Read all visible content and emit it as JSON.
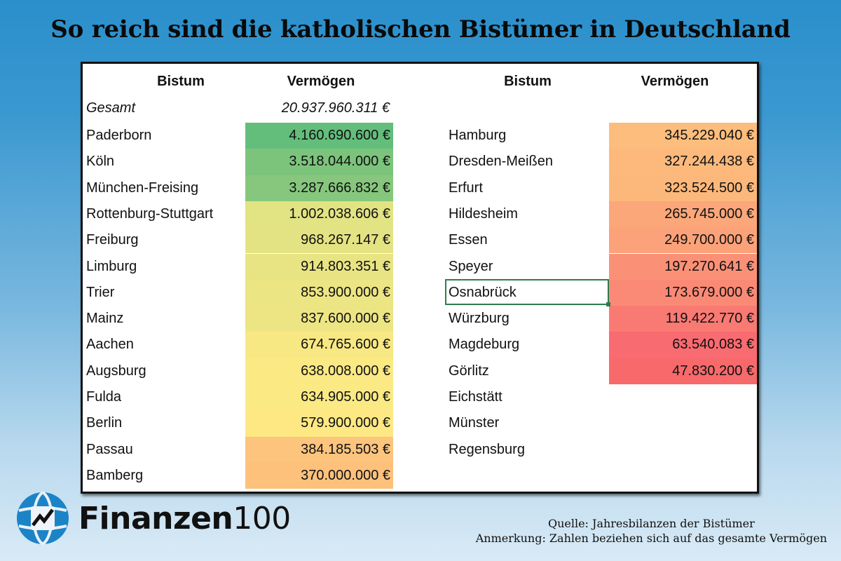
{
  "title": "So reich sind die katholischen Bistümer in Deutschland",
  "table": {
    "left_headers": {
      "name": "Bistum",
      "value": "Vermögen"
    },
    "right_headers": {
      "name": "Bistum",
      "value": "Vermögen"
    },
    "total": {
      "label": "Gesamt",
      "value": "20.937.960.311 €"
    },
    "left_rows": [
      {
        "name": "Paderborn",
        "value": "4.160.690.600 €",
        "color": "#63be7b"
      },
      {
        "name": "Köln",
        "value": "3.518.044.000 €",
        "color": "#7cc47c"
      },
      {
        "name": "München-Freising",
        "value": "3.287.666.832 €",
        "color": "#86c77d"
      },
      {
        "name": "Rottenburg-Stuttgart",
        "value": "1.002.038.606 €",
        "color": "#e2e383"
      },
      {
        "name": "Freiburg",
        "value": "968.267.147 €",
        "color": "#e4e383"
      },
      {
        "name": "Limburg",
        "value": "914.803.351 €",
        "color": "#e8e483"
      },
      {
        "name": "Trier",
        "value": "853.900.000 €",
        "color": "#ece583"
      },
      {
        "name": "Mainz",
        "value": "837.600.000 €",
        "color": "#ede583"
      },
      {
        "name": "Aachen",
        "value": "674.765.600 €",
        "color": "#f8e883"
      },
      {
        "name": "Augsburg",
        "value": "638.008.000 €",
        "color": "#fbe983"
      },
      {
        "name": "Fulda",
        "value": "634.905.000 €",
        "color": "#fbe983"
      },
      {
        "name": "Berlin",
        "value": "579.900.000 €",
        "color": "#fee883"
      },
      {
        "name": "Passau",
        "value": "384.185.503 €",
        "color": "#fdc47d"
      },
      {
        "name": "Bamberg",
        "value": "370.000.000 €",
        "color": "#fdc17c"
      }
    ],
    "right_rows": [
      {
        "name": "Hamburg",
        "value": "345.229.040 €",
        "color": "#fdbd7c"
      },
      {
        "name": "Dresden-Meißen",
        "value": "327.244.438 €",
        "color": "#fcb97b"
      },
      {
        "name": "Erfurt",
        "value": "323.524.500 €",
        "color": "#fcb87b"
      },
      {
        "name": "Hildesheim",
        "value": "265.745.000 €",
        "color": "#fba77a"
      },
      {
        "name": "Essen",
        "value": "249.700.000 €",
        "color": "#fba27a"
      },
      {
        "name": "Speyer",
        "value": "197.270.641 €",
        "color": "#fa9177"
      },
      {
        "name": "Osnabrück",
        "value": "173.679.000 €",
        "color": "#fa8a76"
      },
      {
        "name": "Würzburg",
        "value": "119.422.770 €",
        "color": "#f97a73"
      },
      {
        "name": "Magdeburg",
        "value": "63.540.083 €",
        "color": "#f86b70"
      },
      {
        "name": "Görlitz",
        "value": "47.830.200 €",
        "color": "#f8696b"
      },
      {
        "name": "Eichstätt",
        "value": "",
        "color": ""
      },
      {
        "name": "Münster",
        "value": "",
        "color": ""
      },
      {
        "name": "Regensburg",
        "value": "",
        "color": ""
      }
    ],
    "selected_cell": "Osnabrück"
  },
  "logo": {
    "bold": "Finanzen",
    "light": "100",
    "icon": "globe-chart-icon"
  },
  "notes": {
    "source": "Quelle: Jahresbilanzen der Bistümer",
    "remark": "Anmerkung: Zahlen beziehen sich auf das gesamte Vermögen"
  }
}
